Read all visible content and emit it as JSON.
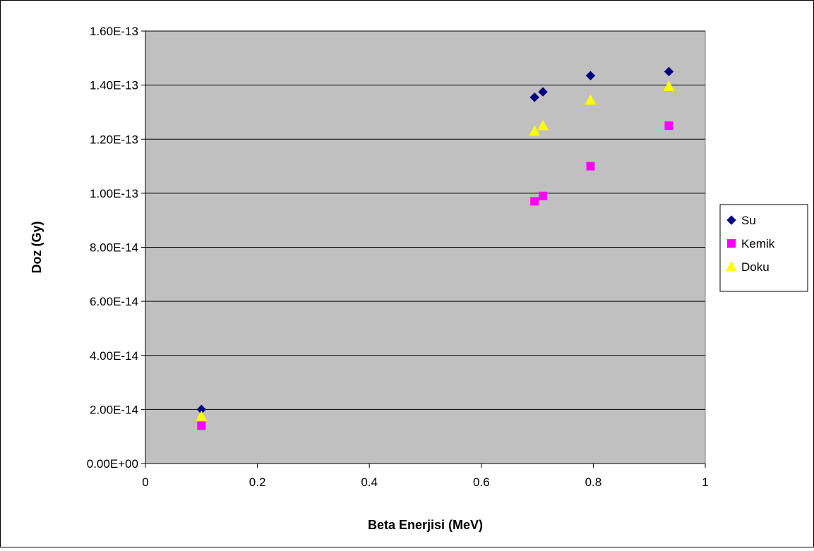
{
  "chart_data": {
    "type": "scatter",
    "title": "",
    "xlabel": "Beta Enerjisi (MeV)",
    "ylabel": "Doz (Gy)",
    "xlim": [
      0,
      1
    ],
    "ylim": [
      0,
      1.6e-13
    ],
    "x_ticks": [
      "0",
      "0.2",
      "0.4",
      "0.6",
      "0.8",
      "1"
    ],
    "y_ticks": [
      "0.00E+00",
      "2.00E-14",
      "4.00E-14",
      "6.00E-14",
      "8.00E-14",
      "1.00E-13",
      "1.20E-13",
      "1.40E-13",
      "1.60E-13"
    ],
    "grid": "horizontal",
    "plot_background": "#c0c0c0",
    "legend_position": "right",
    "series": [
      {
        "name": "Su",
        "marker": "diamond",
        "color": "#000080",
        "points": [
          [
            0.1,
            2e-14
          ],
          [
            0.695,
            1.355e-13
          ],
          [
            0.71,
            1.375e-13
          ],
          [
            0.795,
            1.435e-13
          ],
          [
            0.935,
            1.45e-13
          ]
        ]
      },
      {
        "name": "Kemik",
        "marker": "square",
        "color": "#ff00ff",
        "points": [
          [
            0.1,
            1.4e-14
          ],
          [
            0.695,
            9.7e-14
          ],
          [
            0.71,
            9.9e-14
          ],
          [
            0.795,
            1.1e-13
          ],
          [
            0.935,
            1.25e-13
          ]
        ]
      },
      {
        "name": "Doku",
        "marker": "triangle",
        "color": "#ffff00",
        "points": [
          [
            0.1,
            1.75e-14
          ],
          [
            0.695,
            1.23e-13
          ],
          [
            0.71,
            1.25e-13
          ],
          [
            0.795,
            1.345e-13
          ],
          [
            0.935,
            1.395e-13
          ]
        ]
      }
    ]
  }
}
